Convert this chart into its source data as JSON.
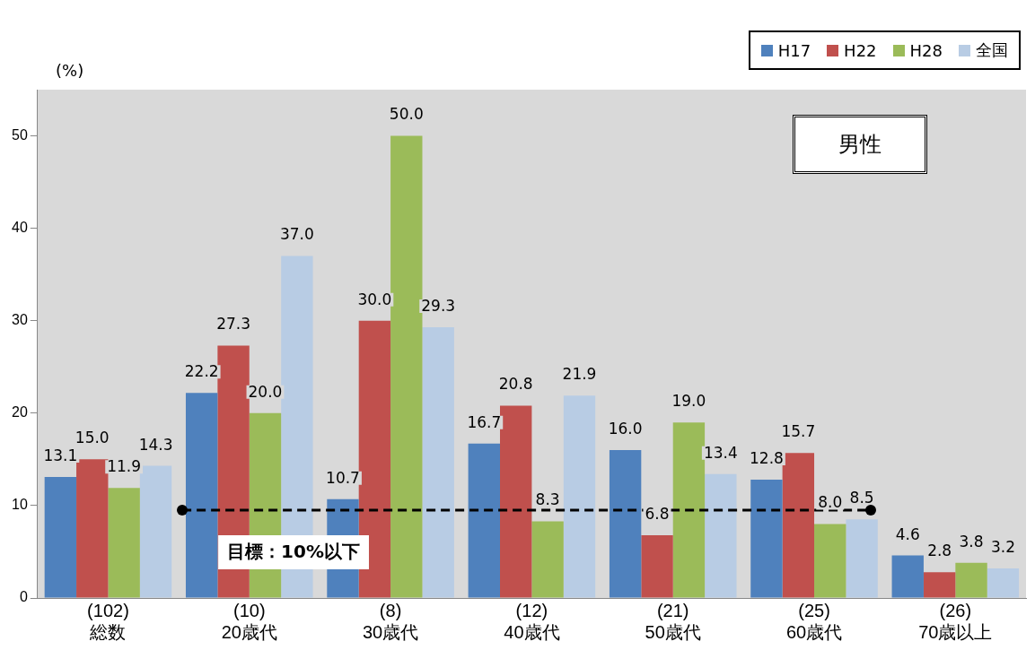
{
  "chart_data": {
    "type": "bar",
    "ylabel": "(%)",
    "categories": [
      "(102)\n総数",
      "(10)\n20歳代",
      "(8)\n30歳代",
      "(12)\n40歳代",
      "(21)\n50歳代",
      "(25)\n60歳代",
      "(26)\n70歳以上"
    ],
    "series": [
      {
        "name": "H17",
        "color": "#4f81bd",
        "values": [
          13.1,
          22.2,
          10.7,
          16.7,
          16.0,
          12.8,
          4.6
        ],
        "value_labels": [
          "13.1",
          "22.2",
          "10.7",
          "16.7",
          "16.0",
          "12.8",
          "4.6"
        ]
      },
      {
        "name": "H22",
        "color": "#c0504d",
        "values": [
          15.0,
          27.3,
          30.0,
          20.8,
          6.8,
          15.7,
          2.8
        ],
        "value_labels": [
          "15.0",
          "27.3",
          "30.0",
          "20.8",
          "6.8",
          "15.7",
          "2.8"
        ]
      },
      {
        "name": "H28",
        "color": "#9bbb59",
        "values": [
          11.9,
          20.0,
          50.0,
          8.3,
          19.0,
          8.0,
          3.8
        ],
        "value_labels": [
          "11.9",
          "20.0",
          "50.0",
          "8.3",
          "19.0",
          "8.0",
          "3.8"
        ]
      },
      {
        "name": "全国",
        "color": "#b8cce4",
        "values": [
          14.3,
          37.0,
          29.3,
          21.9,
          13.4,
          8.5,
          3.2
        ],
        "value_labels": [
          "14.3",
          "37.0",
          "29.3",
          "21.9",
          "13.4",
          "8.5",
          "3.2"
        ]
      }
    ],
    "ylim": [
      0,
      55
    ],
    "yticks": [
      0,
      10,
      20,
      30,
      40,
      50
    ],
    "grid": false,
    "legend": "top right",
    "ref_lines": [
      {
        "axis": "y",
        "value": 9.5,
        "label": "目標：10%以下",
        "color": "#000000",
        "line_style": "dashed"
      }
    ],
    "annotations": [
      "男性"
    ]
  }
}
